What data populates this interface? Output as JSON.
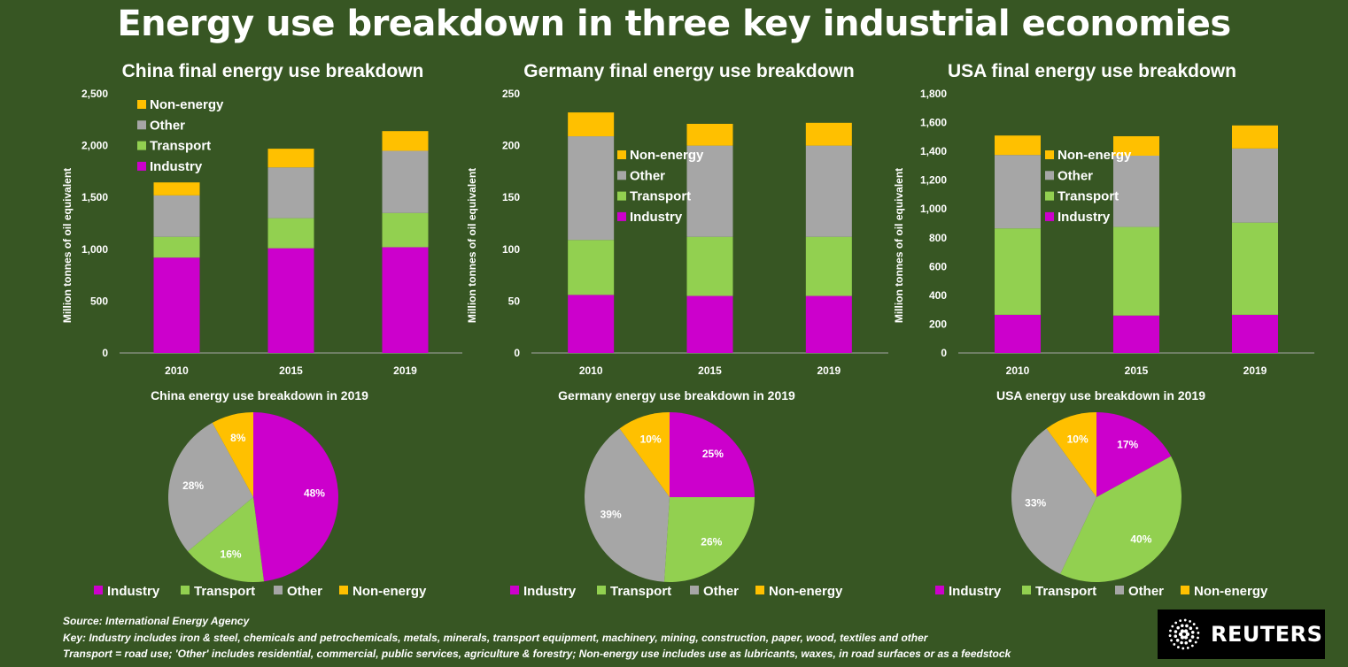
{
  "title": "Energy use breakdown in three key industrial economies",
  "categories_legend": [
    "Non-energy",
    "Other",
    "Transport",
    "Industry"
  ],
  "colors": {
    "Industry": "#CC00CC",
    "Transport": "#92D050",
    "Other": "#A6A6A6",
    "Non-energy": "#FFC000",
    "background": "#375623",
    "axis": "#A6A6A6"
  },
  "footnotes": {
    "source": "Source: International Energy Agency",
    "key": "Key: Industry includes iron & steel, chemicals and petrochemicals, metals, minerals, transport equipment, machinery, mining, construction, paper, wood, textiles and other",
    "transport": "Transport = road use; 'Other' includes residential, commercial, public services, agriculture & forestry; Non-energy use includes use as lubricants, waxes, in road surfaces or as a feedstock"
  },
  "logo": {
    "text": "REUTERS"
  },
  "chart_data": [
    {
      "type": "bar",
      "stacked": true,
      "title": "China final energy use breakdown",
      "ylabel": "Million tonnes of oil equivalent",
      "categories": [
        "2010",
        "2015",
        "2019"
      ],
      "ylim": [
        0,
        2500
      ],
      "yticks": [
        0,
        500,
        1000,
        1500,
        2000,
        2500
      ],
      "ytick_labels": [
        "0",
        "500",
        "1,000",
        "1,500",
        "2,000",
        "2,500"
      ],
      "legend": "top-left",
      "series": [
        {
          "name": "Industry",
          "values": [
            920,
            1010,
            1020
          ]
        },
        {
          "name": "Transport",
          "values": [
            200,
            290,
            330
          ]
        },
        {
          "name": "Other",
          "values": [
            400,
            490,
            600
          ]
        },
        {
          "name": "Non-energy",
          "values": [
            125,
            180,
            190
          ]
        }
      ]
    },
    {
      "type": "bar",
      "stacked": true,
      "title": "Germany final energy use breakdown",
      "ylabel": "Million tonnes of oil equivalent",
      "categories": [
        "2010",
        "2015",
        "2019"
      ],
      "ylim": [
        0,
        250
      ],
      "yticks": [
        0,
        50,
        100,
        150,
        200,
        250
      ],
      "ytick_labels": [
        "0",
        "50",
        "100",
        "150",
        "200",
        "250"
      ],
      "legend": "center",
      "series": [
        {
          "name": "Industry",
          "values": [
            56,
            55,
            55
          ]
        },
        {
          "name": "Transport",
          "values": [
            53,
            57,
            57
          ]
        },
        {
          "name": "Other",
          "values": [
            100,
            88,
            88
          ]
        },
        {
          "name": "Non-energy",
          "values": [
            23,
            21,
            22
          ]
        }
      ]
    },
    {
      "type": "bar",
      "stacked": true,
      "title": "USA final energy use breakdown",
      "ylabel": "Million tonnes of oil equivalent",
      "categories": [
        "2010",
        "2015",
        "2019"
      ],
      "ylim": [
        0,
        1800
      ],
      "yticks": [
        0,
        200,
        400,
        600,
        800,
        1000,
        1200,
        1400,
        1600,
        1800
      ],
      "ytick_labels": [
        "0",
        "200",
        "400",
        "600",
        "800",
        "1,000",
        "1,200",
        "1,400",
        "1,600",
        "1,800"
      ],
      "legend": "center",
      "series": [
        {
          "name": "Industry",
          "values": [
            265,
            260,
            265
          ]
        },
        {
          "name": "Transport",
          "values": [
            600,
            615,
            640
          ]
        },
        {
          "name": "Other",
          "values": [
            510,
            495,
            515
          ]
        },
        {
          "name": "Non-energy",
          "values": [
            135,
            135,
            160
          ]
        }
      ]
    },
    {
      "type": "pie",
      "title": "China energy use breakdown in 2019",
      "legend": "bottom",
      "slices": [
        {
          "name": "Industry",
          "value": 48,
          "label": "48%"
        },
        {
          "name": "Transport",
          "value": 16,
          "label": "16%"
        },
        {
          "name": "Other",
          "value": 28,
          "label": "28%"
        },
        {
          "name": "Non-energy",
          "value": 8,
          "label": "8%"
        }
      ]
    },
    {
      "type": "pie",
      "title": "Germany energy use breakdown in 2019",
      "legend": "bottom",
      "slices": [
        {
          "name": "Industry",
          "value": 25,
          "label": "25%"
        },
        {
          "name": "Transport",
          "value": 26,
          "label": "26%"
        },
        {
          "name": "Other",
          "value": 39,
          "label": "39%"
        },
        {
          "name": "Non-energy",
          "value": 10,
          "label": "10%"
        }
      ]
    },
    {
      "type": "pie",
      "title": "USA energy use breakdown in 2019",
      "legend": "bottom",
      "slices": [
        {
          "name": "Industry",
          "value": 17,
          "label": "17%"
        },
        {
          "name": "Transport",
          "value": 40,
          "label": "40%"
        },
        {
          "name": "Other",
          "value": 33,
          "label": "33%"
        },
        {
          "name": "Non-energy",
          "value": 10,
          "label": "10%"
        }
      ]
    }
  ]
}
